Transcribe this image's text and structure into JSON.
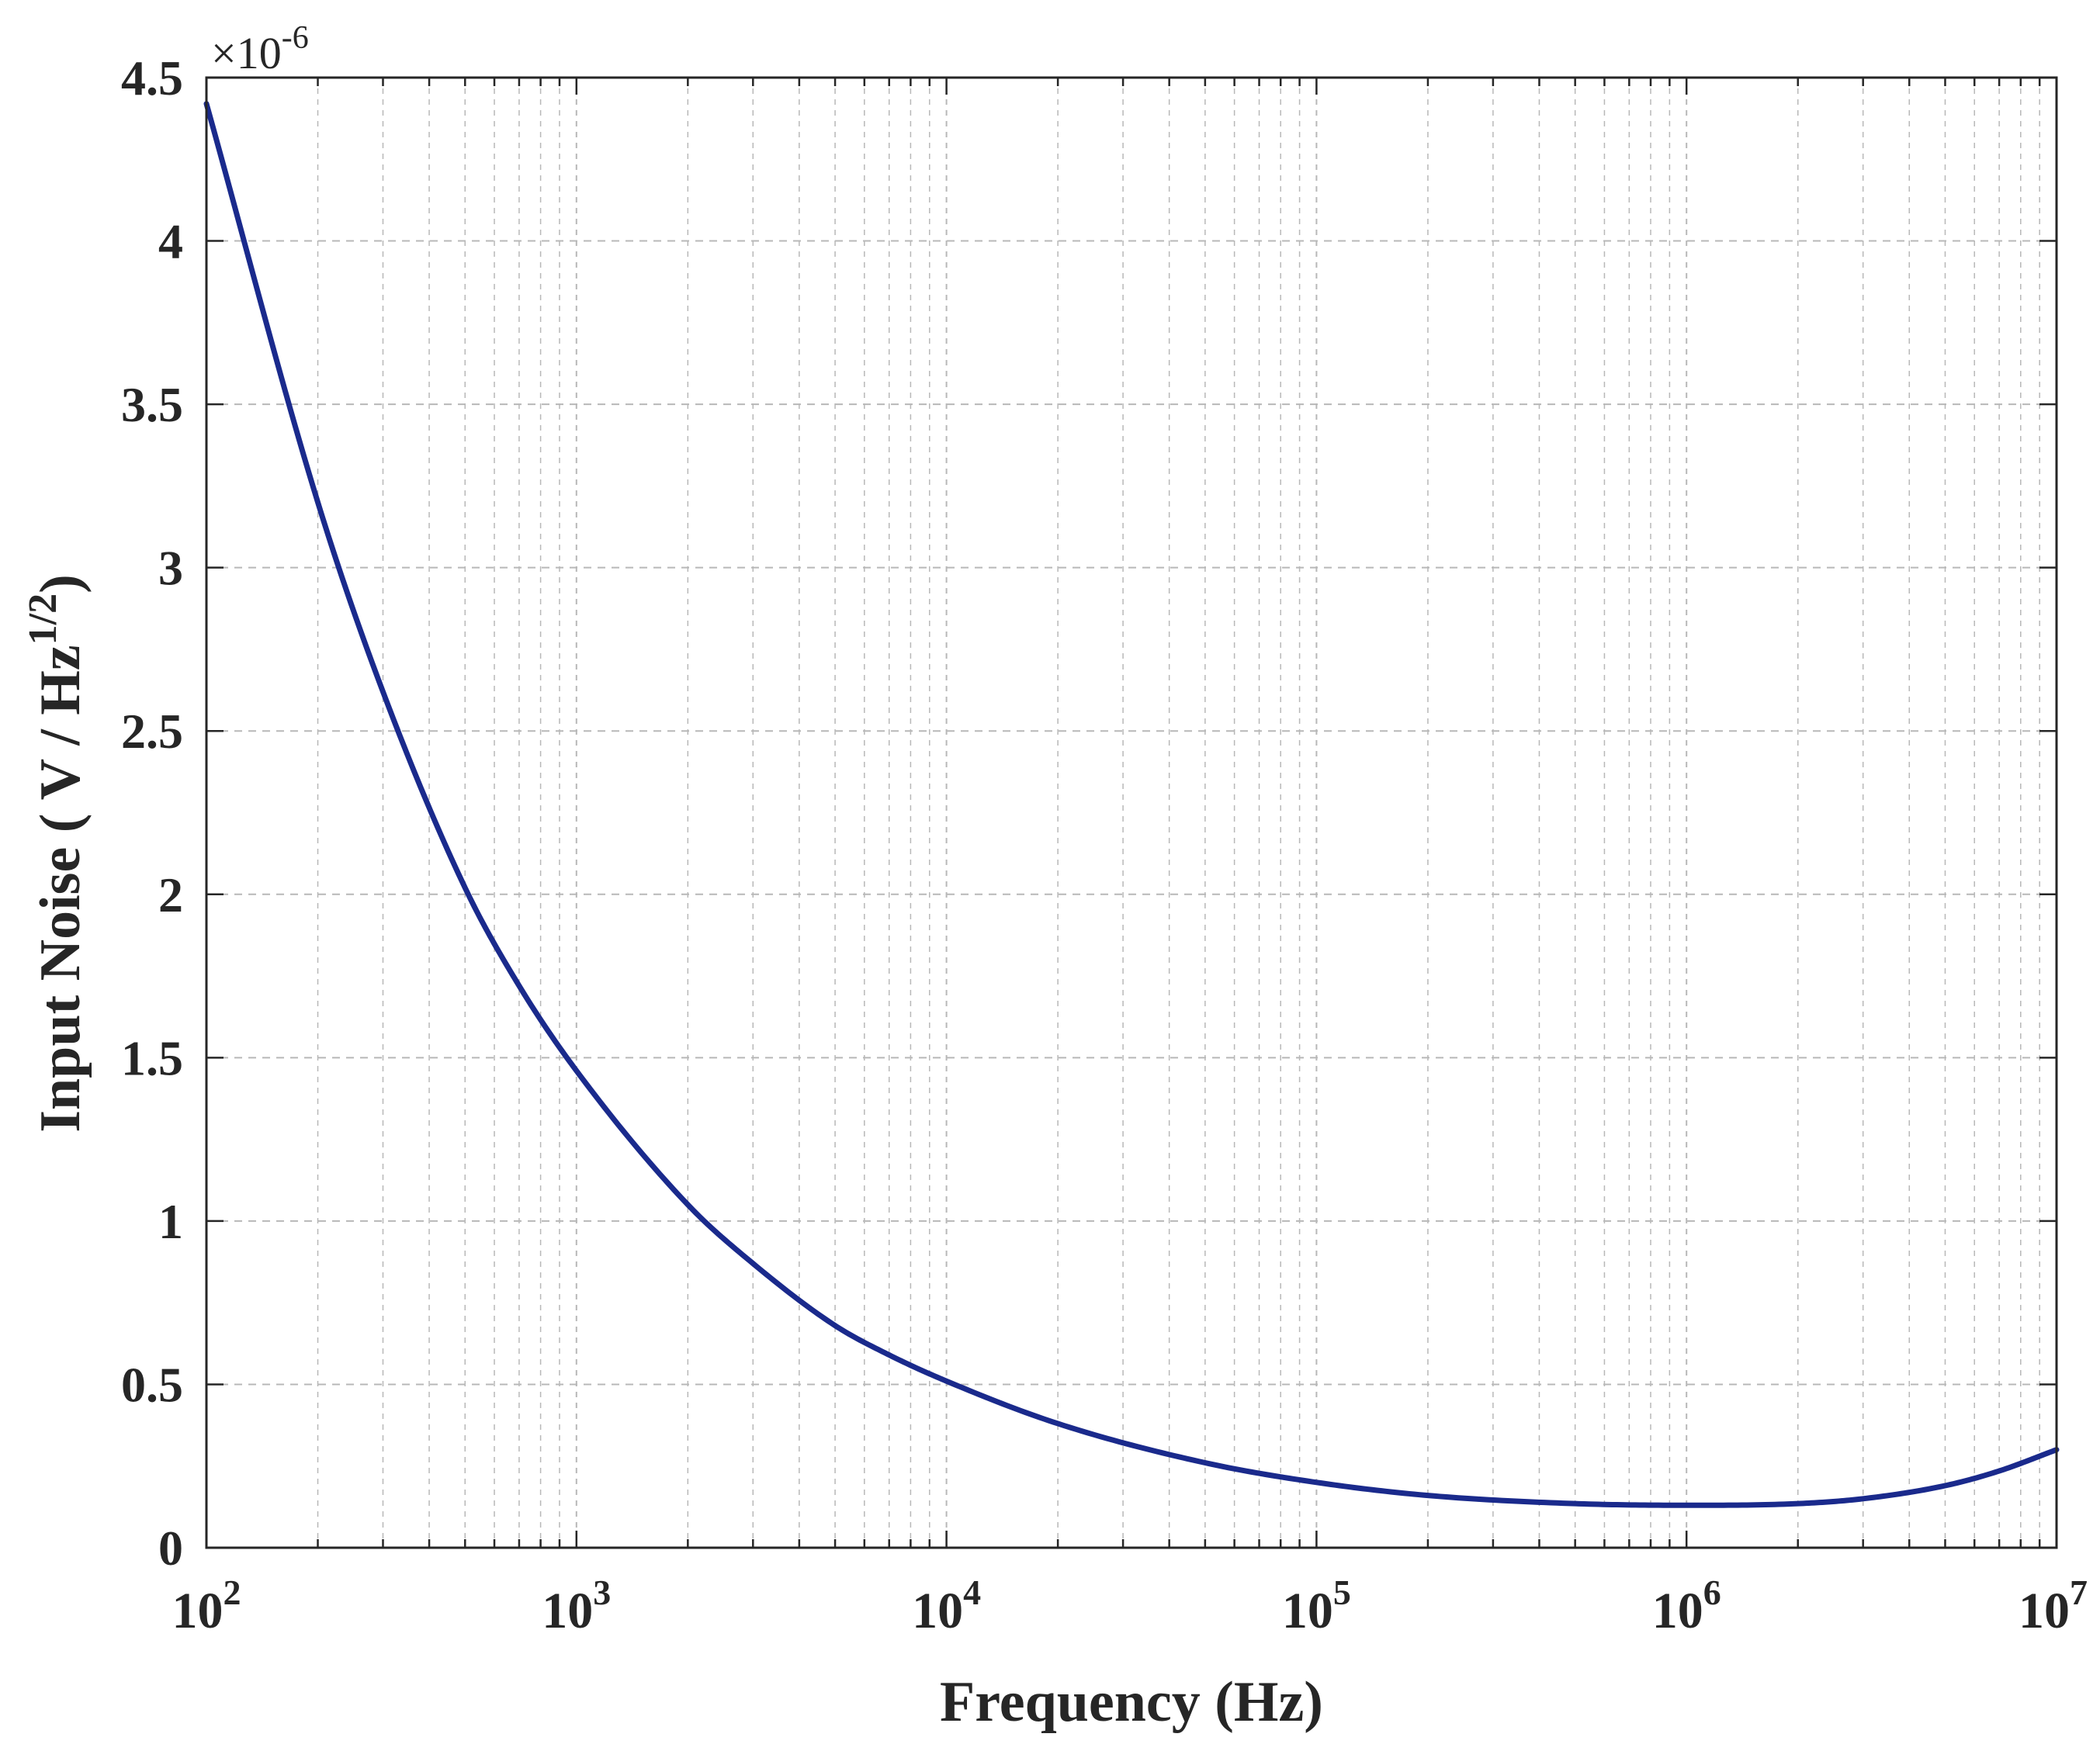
{
  "chart_data": {
    "type": "line",
    "xscale": "log",
    "xlim": [
      100,
      10000000
    ],
    "ylim": [
      0,
      4.5e-06
    ],
    "y_multiplier_label": "×10",
    "y_multiplier_exponent": "-6",
    "xlabel": "Frequency (Hz)",
    "ylabel_main": "Input Noise ( V / Hz",
    "ylabel_sup": "1/2",
    "ylabel_end": ")",
    "grid": true,
    "x_ticks": [
      {
        "value": 100,
        "base": "10",
        "exp": "2"
      },
      {
        "value": 1000,
        "base": "10",
        "exp": "3"
      },
      {
        "value": 10000,
        "base": "10",
        "exp": "4"
      },
      {
        "value": 100000,
        "base": "10",
        "exp": "5"
      },
      {
        "value": 1000000,
        "base": "10",
        "exp": "6"
      },
      {
        "value": 10000000,
        "base": "10",
        "exp": "7"
      }
    ],
    "y_ticks": [
      {
        "value": 0,
        "label": "0"
      },
      {
        "value": 5e-07,
        "label": "0.5"
      },
      {
        "value": 1e-06,
        "label": "1"
      },
      {
        "value": 1.5e-06,
        "label": "1.5"
      },
      {
        "value": 2e-06,
        "label": "2"
      },
      {
        "value": 2.5e-06,
        "label": "2.5"
      },
      {
        "value": 3e-06,
        "label": "3"
      },
      {
        "value": 3.5e-06,
        "label": "3.5"
      },
      {
        "value": 4e-06,
        "label": "4"
      },
      {
        "value": 4.5e-06,
        "label": "4.5"
      }
    ],
    "series": [
      {
        "color": "#1a2a8c",
        "x": [
          100,
          200,
          300,
          500,
          700,
          1000,
          2000,
          3000,
          5000,
          7000,
          10000,
          20000,
          50000,
          100000,
          200000,
          500000,
          1000000,
          2000000,
          3000000,
          5000000,
          7000000,
          10000000
        ],
        "y": [
          4.42e-06,
          3.2e-06,
          2.62e-06,
          2.02e-06,
          1.72e-06,
          1.46e-06,
          1.05e-06,
          8.7e-07,
          6.8e-07,
          5.9e-07,
          5.1e-07,
          3.8e-07,
          2.6e-07,
          2e-07,
          1.6e-07,
          1.35e-07,
          1.3e-07,
          1.35e-07,
          1.5e-07,
          1.9e-07,
          2.35e-07,
          3e-07
        ]
      }
    ]
  }
}
